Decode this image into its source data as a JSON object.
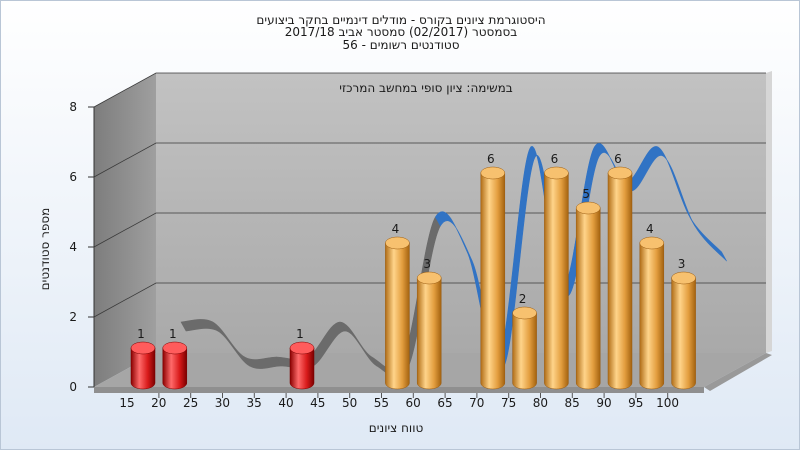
{
  "chart_data": {
    "type": "bar",
    "title_lines": [
      "היסטוגרמת ציונים בקורס - מודלים דינמיים בחקר ביצועים",
      "בסמסטר  (02/2017)  סמסטר אביב 2017/18",
      "סטודנטים רשומים - 56"
    ],
    "subtitle": "במשימה: ציון סופי במחשב המרכזי",
    "xlabel": "טווח ציונים",
    "ylabel": "מספר סטודנטים",
    "ylim": [
      0,
      8
    ],
    "y_ticks": [
      0,
      2,
      4,
      6,
      8
    ],
    "categories": [
      "15",
      "20",
      "25",
      "30",
      "35",
      "40",
      "45",
      "50",
      "55",
      "60",
      "65",
      "70",
      "75",
      "80",
      "85",
      "90",
      "95",
      "100"
    ],
    "values": [
      1,
      1,
      0,
      0,
      0,
      1,
      0,
      0,
      4,
      3,
      0,
      6,
      2,
      6,
      5,
      6,
      4,
      3
    ],
    "failing_threshold": 55,
    "colors": {
      "failing_bar": "#d81a1a",
      "passing_bar": "#e8a64a",
      "trend_below": "#6b6b6b",
      "trend_above": "#3173c4",
      "wall": "#b9b9b9",
      "side_wall": "#8c8c8c"
    },
    "grid": true,
    "legend": "none"
  }
}
